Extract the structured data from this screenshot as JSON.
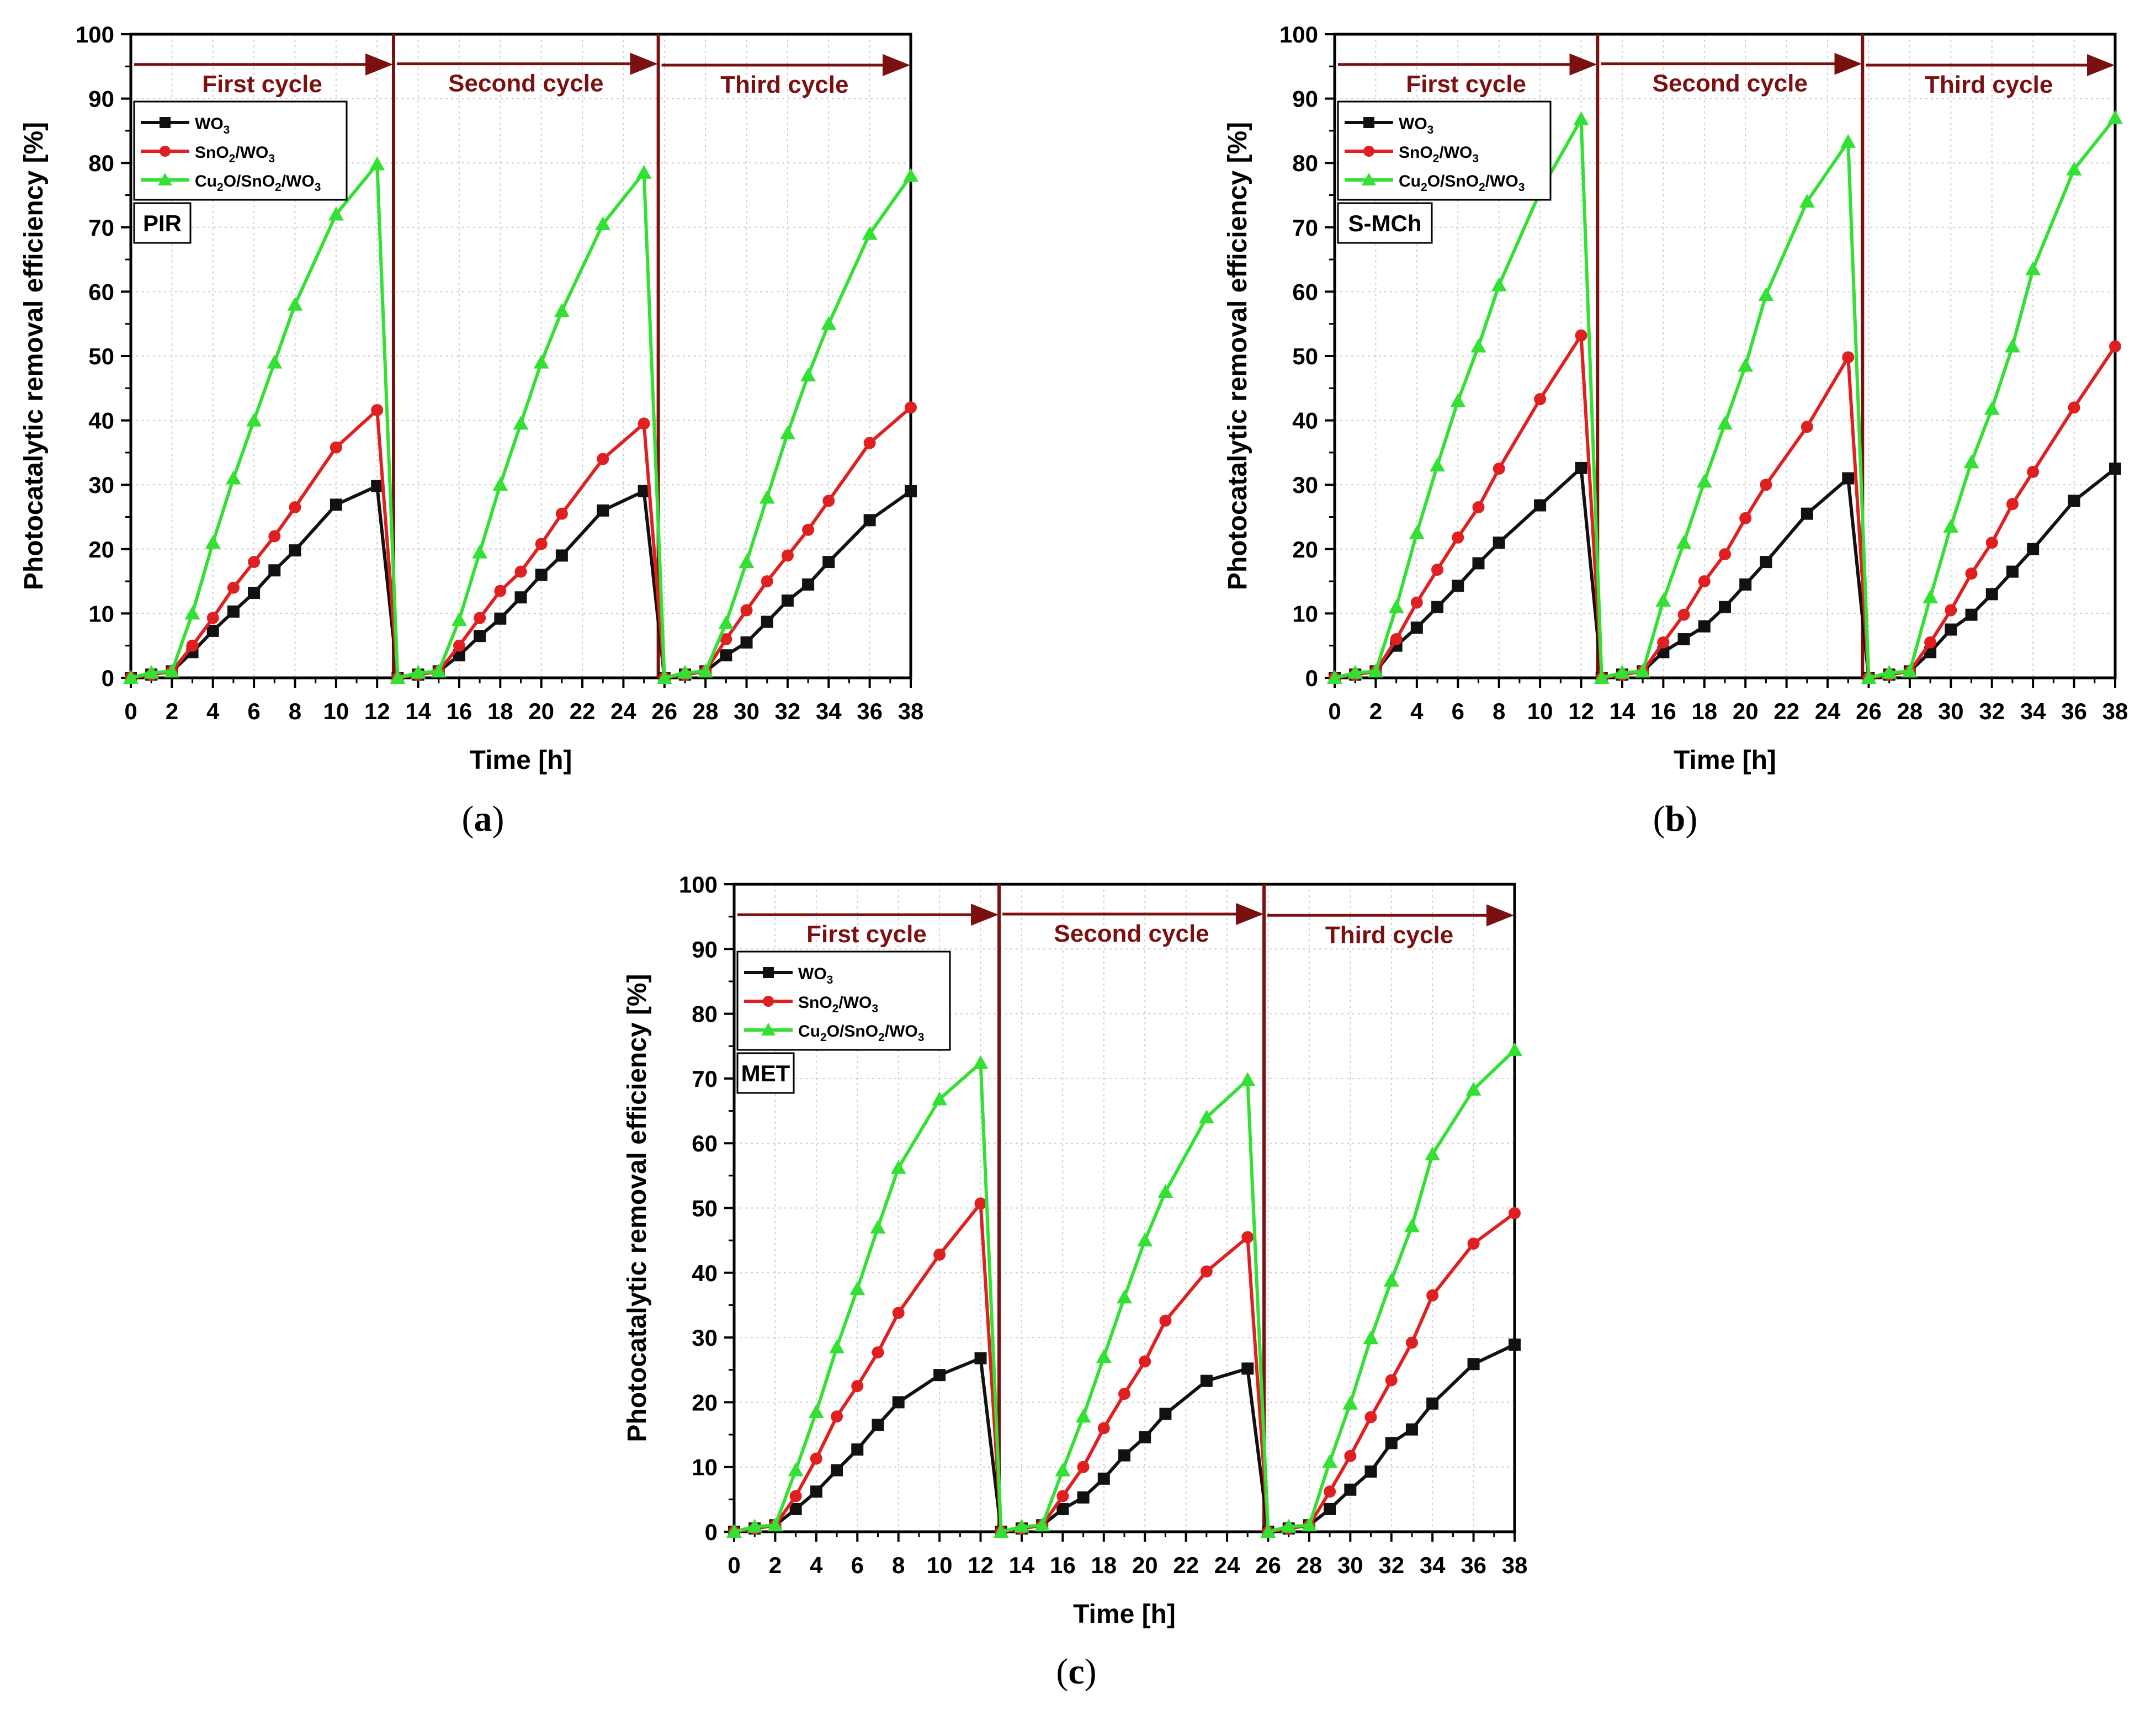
{
  "figure": {
    "y_axis_label": "Photocatalytic removal efficiency [%]",
    "x_axis_label": "Time [h]",
    "cycle_labels": [
      "First cycle",
      "Second cycle",
      "Third cycle"
    ],
    "x_ticks": [
      0,
      2,
      4,
      6,
      8,
      10,
      12,
      14,
      16,
      18,
      20,
      22,
      24,
      26,
      28,
      30,
      32,
      34,
      36,
      38
    ],
    "y_ticks": [
      0,
      10,
      20,
      30,
      40,
      50,
      60,
      70,
      80,
      90,
      100
    ],
    "legend": [
      {
        "base": "WO",
        "sub": "3",
        "full": "WO3"
      },
      {
        "base": "SnO",
        "sub": "2",
        "rest": "/WO",
        "sub2": "3",
        "full": "SnO2/WO3"
      },
      {
        "base": "Cu",
        "sub": "2",
        "rest": "O/SnO",
        "sub2": "2",
        "rest2": "/WO",
        "sub3": "3",
        "full": "Cu2O/SnO2/WO3"
      }
    ],
    "colors": {
      "wo3": "#111111",
      "sno2": "#e02020",
      "cu2o": "#33e033",
      "cycle": "#7a1010"
    }
  },
  "chart_data": [
    {
      "type": "line",
      "panel_label": "(a)",
      "compound": "PIR",
      "xlabel": "Time [h]",
      "ylabel": "Photocatalytic removal efficiency [%]",
      "xlim": [
        0,
        38
      ],
      "ylim": [
        0,
        100
      ],
      "cycle_boundaries": [
        12.8,
        25.7
      ],
      "series": [
        {
          "name": "WO3",
          "x": [
            0,
            1,
            2,
            3,
            4,
            5,
            6,
            7,
            8,
            10,
            12,
            13,
            14,
            15,
            16,
            17,
            18,
            19,
            20,
            21,
            23,
            25,
            26,
            27,
            28,
            29,
            30,
            31,
            32,
            33,
            34,
            36,
            38
          ],
          "y": [
            0,
            0.5,
            1,
            4,
            7.3,
            10.3,
            13.2,
            16.7,
            19.8,
            26.9,
            29.8,
            0,
            0.5,
            1,
            3.5,
            6.5,
            9.2,
            12.5,
            16,
            19,
            26,
            29,
            0,
            0.5,
            1,
            3.5,
            5.5,
            8.7,
            12,
            14.5,
            18,
            24.5,
            29
          ]
        },
        {
          "name": "SnO2/WO3",
          "x": [
            0,
            1,
            2,
            3,
            4,
            5,
            6,
            7,
            8,
            10,
            12,
            13,
            14,
            15,
            16,
            17,
            18,
            19,
            20,
            21,
            23,
            25,
            26,
            27,
            28,
            29,
            30,
            31,
            32,
            33,
            34,
            36,
            38
          ],
          "y": [
            0,
            0.5,
            1,
            5,
            9.3,
            14,
            18,
            22,
            26.5,
            35.8,
            41.6,
            0,
            0.5,
            1,
            5,
            9.3,
            13.5,
            16.5,
            20.8,
            25.5,
            34,
            39.5,
            0,
            0.5,
            1,
            6,
            10.5,
            15,
            19,
            23,
            27.5,
            36.5,
            42
          ]
        },
        {
          "name": "Cu2O/SnO2/WO3",
          "x": [
            0,
            1,
            2,
            3,
            4,
            5,
            6,
            7,
            8,
            10,
            12,
            13,
            14,
            15,
            16,
            17,
            18,
            19,
            20,
            21,
            23,
            25,
            26,
            27,
            28,
            29,
            30,
            31,
            32,
            33,
            34,
            36,
            38
          ],
          "y": [
            0,
            0.8,
            1,
            10,
            21,
            31,
            40,
            49,
            58,
            72,
            79.8,
            0,
            0.8,
            1,
            9,
            19.5,
            30,
            39.5,
            49,
            57,
            70.5,
            78.5,
            0,
            0.8,
            1,
            8.5,
            18,
            28,
            38,
            47,
            55,
            69,
            78
          ]
        }
      ]
    },
    {
      "type": "line",
      "panel_label": "(b)",
      "compound": "S-MCh",
      "xlabel": "Time [h]",
      "ylabel": "Photocatalytic removal efficiency [%]",
      "xlim": [
        0,
        38
      ],
      "ylim": [
        0,
        100
      ],
      "cycle_boundaries": [
        12.8,
        25.7
      ],
      "series": [
        {
          "name": "WO3",
          "x": [
            0,
            1,
            2,
            3,
            4,
            5,
            6,
            7,
            8,
            10,
            12,
            13,
            14,
            15,
            16,
            17,
            18,
            19,
            20,
            21,
            23,
            25,
            26,
            27,
            28,
            29,
            30,
            31,
            32,
            33,
            34,
            36,
            38
          ],
          "y": [
            0,
            0.5,
            1,
            5,
            7.8,
            11,
            14.3,
            17.8,
            21,
            26.8,
            32.6,
            0,
            0.5,
            1,
            4,
            6,
            8,
            11,
            14.5,
            18,
            25.5,
            31,
            0,
            0.5,
            1,
            4,
            7.5,
            9.8,
            13,
            16.5,
            20,
            27.5,
            32.5
          ]
        },
        {
          "name": "SnO2/WO3",
          "x": [
            0,
            1,
            2,
            3,
            4,
            5,
            6,
            7,
            8,
            10,
            12,
            13,
            14,
            15,
            16,
            17,
            18,
            19,
            20,
            21,
            23,
            25,
            26,
            27,
            28,
            29,
            30,
            31,
            32,
            33,
            34,
            36,
            38
          ],
          "y": [
            0,
            0.5,
            1,
            6,
            11.7,
            16.8,
            21.8,
            26.5,
            32.5,
            43.3,
            53.2,
            0,
            0.5,
            1,
            5.5,
            9.8,
            15,
            19.2,
            24.8,
            30,
            39,
            49.8,
            0,
            0.5,
            1,
            5.5,
            10.5,
            16.2,
            21,
            27,
            32,
            42,
            51.5
          ]
        },
        {
          "name": "Cu2O/SnO2/WO3",
          "x": [
            0,
            1,
            2,
            3,
            4,
            5,
            6,
            7,
            8,
            10,
            12,
            13,
            14,
            15,
            16,
            17,
            18,
            19,
            20,
            21,
            23,
            25,
            26,
            27,
            28,
            29,
            30,
            31,
            32,
            33,
            34,
            36,
            38
          ],
          "y": [
            0,
            0.8,
            1,
            11,
            22.5,
            33,
            43,
            51.5,
            61,
            75.5,
            86.8,
            0,
            0.8,
            1,
            12,
            21,
            30.5,
            39.5,
            48.5,
            59.5,
            74,
            83.3,
            0,
            0.8,
            1,
            12.5,
            23.5,
            33.5,
            41.8,
            51.5,
            63.5,
            79,
            87
          ]
        }
      ]
    },
    {
      "type": "line",
      "panel_label": "(c)",
      "compound": "MET",
      "xlabel": "Time [h]",
      "ylabel": "Photocatalytic removal efficiency [%]",
      "xlim": [
        0,
        38
      ],
      "ylim": [
        0,
        100
      ],
      "cycle_boundaries": [
        12.9,
        25.8
      ],
      "series": [
        {
          "name": "WO3",
          "x": [
            0,
            1,
            2,
            3,
            4,
            5,
            6,
            7,
            8,
            10,
            12,
            13,
            14,
            15,
            16,
            17,
            18,
            19,
            20,
            21,
            23,
            25,
            26,
            27,
            28,
            29,
            30,
            31,
            32,
            33,
            34,
            36,
            38
          ],
          "y": [
            0,
            0.5,
            1,
            3.5,
            6.2,
            9.5,
            12.7,
            16.5,
            20,
            24.2,
            26.8,
            0,
            0.5,
            1,
            3.5,
            5.3,
            8.2,
            11.8,
            14.6,
            18.2,
            23.3,
            25.2,
            0,
            0.5,
            1,
            3.5,
            6.5,
            9.3,
            13.7,
            15.8,
            19.8,
            25.9,
            28.9
          ]
        },
        {
          "name": "SnO2/WO3",
          "x": [
            0,
            1,
            2,
            3,
            4,
            5,
            6,
            7,
            8,
            10,
            12,
            13,
            14,
            15,
            16,
            17,
            18,
            19,
            20,
            21,
            23,
            25,
            26,
            27,
            28,
            29,
            30,
            31,
            32,
            33,
            34,
            36,
            38
          ],
          "y": [
            0,
            0.5,
            1,
            5.5,
            11.3,
            17.8,
            22.5,
            27.7,
            33.8,
            42.8,
            50.7,
            0,
            0.5,
            1,
            5.5,
            10,
            16,
            21.3,
            26.3,
            32.6,
            40.2,
            45.5,
            0,
            0.5,
            1,
            6.2,
            11.7,
            17.7,
            23.4,
            29.2,
            36.5,
            44.5,
            49.2
          ]
        },
        {
          "name": "Cu2O/SnO2/WO3",
          "x": [
            0,
            1,
            2,
            3,
            4,
            5,
            6,
            7,
            8,
            10,
            12,
            13,
            14,
            15,
            16,
            17,
            18,
            19,
            20,
            21,
            23,
            25,
            26,
            27,
            28,
            29,
            30,
            31,
            32,
            33,
            34,
            36,
            38
          ],
          "y": [
            0,
            0.8,
            1,
            9.5,
            18.5,
            28.5,
            37.5,
            47,
            56.2,
            66.8,
            72.4,
            0,
            0.8,
            1,
            9.5,
            17.8,
            27,
            36.2,
            45,
            52.5,
            64,
            69.8,
            0,
            0.8,
            1,
            10.8,
            19.8,
            29.9,
            38.8,
            47.2,
            58.3,
            68.3,
            74.4
          ]
        }
      ]
    }
  ]
}
